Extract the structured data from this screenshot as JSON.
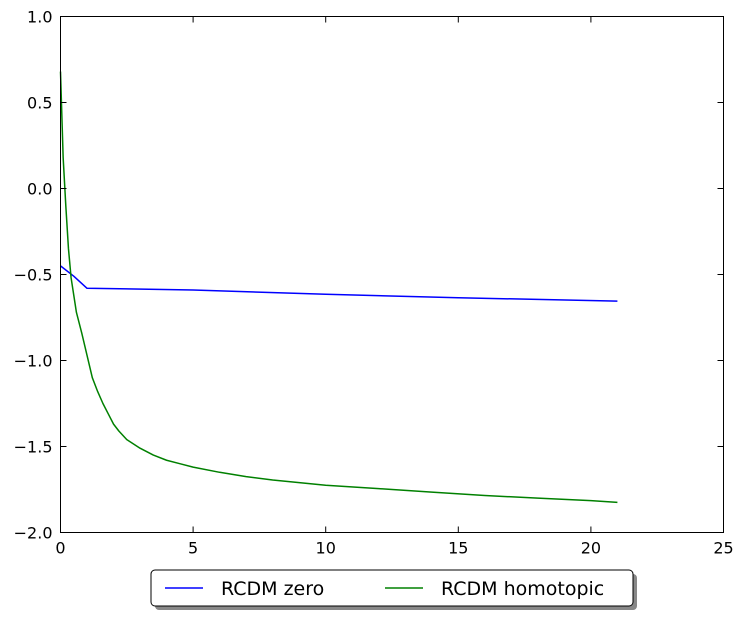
{
  "chart_data": {
    "type": "line",
    "title": "",
    "xlabel": "",
    "ylabel": "",
    "xlim": [
      0,
      25
    ],
    "ylim": [
      -2.0,
      1.0
    ],
    "x_ticks": [
      0,
      5,
      10,
      15,
      20,
      25
    ],
    "y_ticks": [
      -2.0,
      -1.5,
      -1.0,
      -0.5,
      0.0,
      0.5,
      1.0
    ],
    "x_tick_labels": [
      "0",
      "5",
      "10",
      "15",
      "20",
      "25"
    ],
    "y_tick_labels": [
      "−2.0",
      "−1.5",
      "−1.0",
      "−0.5",
      "0.0",
      "0.5",
      "1.0"
    ],
    "grid": false,
    "legend_position": "bottom-center-outside",
    "series": [
      {
        "name": "RCDM zero",
        "color": "#0000ff",
        "x": [
          0,
          0.5,
          1.0,
          5,
          10,
          15,
          21
        ],
        "y": [
          -0.45,
          -0.51,
          -0.58,
          -0.59,
          -0.615,
          -0.635,
          -0.655
        ]
      },
      {
        "name": "RCDM homotopic",
        "color": "#008000",
        "x": [
          0,
          0.1,
          0.2,
          0.3,
          0.4,
          0.5,
          0.6,
          0.8,
          1.0,
          1.2,
          1.4,
          1.6,
          1.8,
          2.0,
          2.2,
          2.5,
          3.0,
          3.5,
          4.0,
          4.5,
          5.0,
          6.0,
          7.0,
          8.0,
          9.0,
          10.0,
          12.0,
          14.0,
          16.0,
          18.0,
          20.0,
          21.0
        ],
        "y": [
          0.68,
          0.18,
          -0.1,
          -0.35,
          -0.52,
          -0.62,
          -0.72,
          -0.84,
          -0.97,
          -1.1,
          -1.18,
          -1.25,
          -1.31,
          -1.37,
          -1.41,
          -1.46,
          -1.51,
          -1.55,
          -1.58,
          -1.6,
          -1.62,
          -1.65,
          -1.675,
          -1.695,
          -1.71,
          -1.725,
          -1.745,
          -1.765,
          -1.785,
          -1.8,
          -1.815,
          -1.825
        ]
      }
    ]
  }
}
